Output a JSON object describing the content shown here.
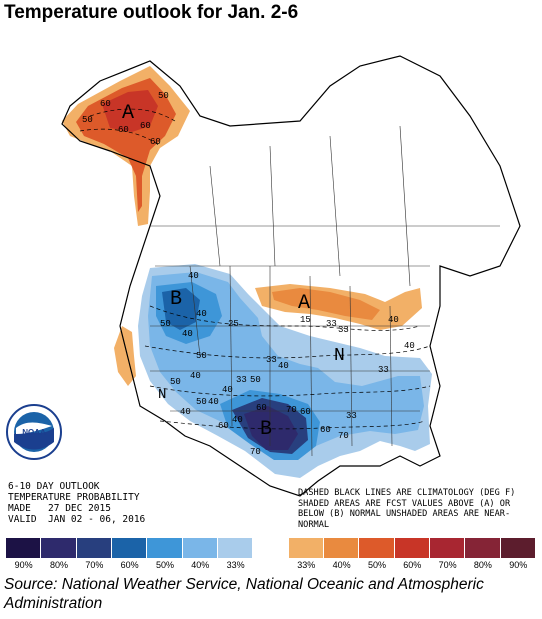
{
  "title": "Temperature outlook for Jan. 2-6",
  "map": {
    "labels": {
      "alaska_above": "A",
      "west_below": "B",
      "south_below": "B",
      "lakes_above": "A",
      "east_normal": "N",
      "california_normal": "N"
    },
    "contours": [
      "60",
      "50",
      "60",
      "60",
      "60",
      "50",
      "40",
      "40",
      "50",
      "40",
      "33",
      "40",
      "40",
      "50",
      "50",
      "60",
      "70",
      "60",
      "70",
      "40",
      "60",
      "33",
      "40",
      "60",
      "70",
      "50",
      "40",
      "33",
      "25",
      "15",
      "33",
      "40",
      "40",
      "33",
      "50",
      "40",
      "33"
    ]
  },
  "info": {
    "line1": "6-10 DAY OUTLOOK",
    "line2": "TEMPERATURE PROBABILITY",
    "line3": "MADE   27 DEC 2015",
    "line4": "VALID  JAN 02 - 06, 2016"
  },
  "legend_note": "DASHED BLACK LINES ARE CLIMATOLOGY (DEG F) SHADED AREAS ARE FCST VALUES ABOVE (A) OR BELOW (B) NORMAL UNSHADED AREAS ARE NEAR-NORMAL",
  "logo_text": "NOAA",
  "scale": {
    "colors": [
      "#1c1245",
      "#2e2a6c",
      "#283f7e",
      "#1b63a8",
      "#3e96d8",
      "#7ab6e8",
      "#a9cceb",
      "#ffffff",
      "#f2b067",
      "#e98a3f",
      "#dd5a2a",
      "#c83527",
      "#a82631",
      "#852436",
      "#5c1d2d"
    ],
    "ticks": [
      "90%",
      "80%",
      "70%",
      "60%",
      "50%",
      "40%",
      "33%",
      "",
      "33%",
      "40%",
      "50%",
      "60%",
      "70%",
      "80%",
      "90%"
    ]
  },
  "source": "Source: National Weather Service, National Oceanic and Atmospheric Administration"
}
